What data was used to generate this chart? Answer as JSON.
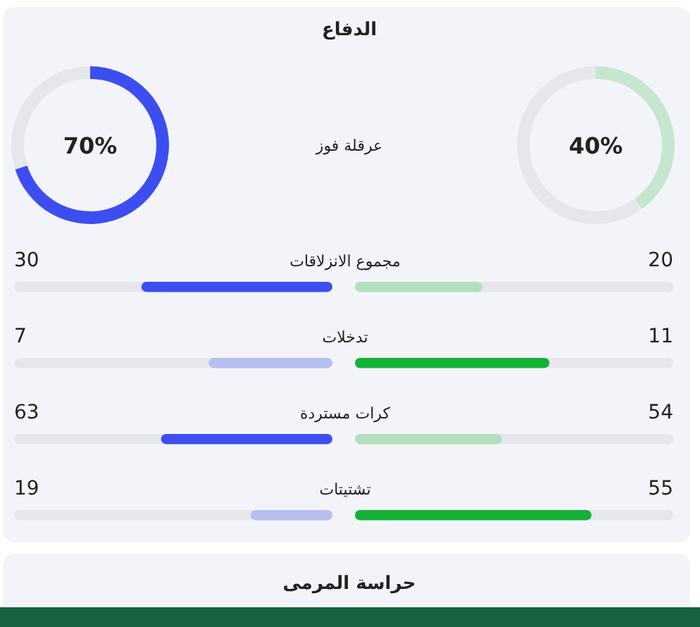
{
  "chart_data": [
    {
      "type": "donut",
      "title": "الدفاع",
      "annotations": [
        "70%",
        "عرقلة فوز"
      ],
      "categories": [
        null,
        null
      ],
      "values": [
        70,
        30
      ],
      "colors": [
        "#3d4ef0",
        "#e6e7ec"
      ]
    },
    {
      "type": "donut",
      "annotations": [
        "40%"
      ],
      "categories": [
        null,
        null
      ],
      "values": [
        40,
        60
      ],
      "colors": [
        "#c6e6cd",
        "#e6e7ec"
      ]
    },
    {
      "type": "other",
      "data_labels": true,
      "annotations": [
        "حراسة المرمى"
      ],
      "categories": [
        "مجموع الانزلاقات",
        "تدخلات",
        "كرات مستردة",
        "تشتيتات"
      ],
      "series": [
        {
          "values": [
            30,
            7,
            63,
            19
          ],
          "colors": [
            "#3d4ef0",
            "#b7bef0",
            "#3d4ef0",
            "#b7bef0"
          ]
        },
        {
          "values": [
            20,
            11,
            54,
            55
          ],
          "colors": [
            "#b3dfbd",
            "#14b137",
            "#b3dfbd",
            "#14b137"
          ]
        }
      ]
    }
  ]
}
